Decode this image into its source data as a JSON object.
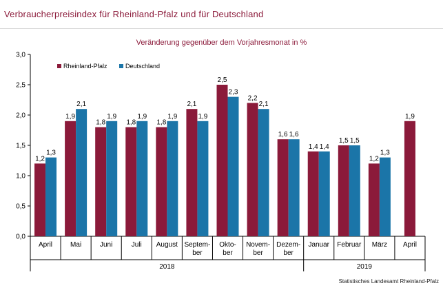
{
  "title": "Verbraucherpreisindex für Rheinland-Pfalz und für Deutschland",
  "source": "Statistisches Landesamt Rheinland-Pfalz",
  "colors": {
    "rlp": "#8b1a3a",
    "de": "#1b75a8",
    "title": "#8b1a3a"
  },
  "chart_data": {
    "type": "bar",
    "title": "Veränderung gegenüber dem Vorjahresmonat in %",
    "ylim": [
      0,
      3.0
    ],
    "yticks": [
      "0,0",
      "0,5",
      "1,0",
      "1,5",
      "2,0",
      "2,5",
      "3,0"
    ],
    "ytick_values": [
      0,
      0.5,
      1.0,
      1.5,
      2.0,
      2.5,
      3.0
    ],
    "grid": false,
    "legend_position": "top-left",
    "categories": [
      [
        "April"
      ],
      [
        "Mai"
      ],
      [
        "Juni"
      ],
      [
        "Juli"
      ],
      [
        "August"
      ],
      [
        "Septem-",
        "ber"
      ],
      [
        "Okto-",
        "ber"
      ],
      [
        "Novem-",
        "ber"
      ],
      [
        "Dezem-",
        "ber"
      ],
      [
        "Januar"
      ],
      [
        "Februar"
      ],
      [
        "März"
      ],
      [
        "April"
      ]
    ],
    "years": [
      {
        "label": "2018",
        "from": 0,
        "to": 8
      },
      {
        "label": "2019",
        "from": 9,
        "to": 12
      }
    ],
    "series": [
      {
        "name": "Rheinland-Pfalz",
        "key": "rlp",
        "values": [
          1.2,
          1.9,
          1.8,
          1.8,
          1.8,
          2.1,
          2.5,
          2.2,
          1.6,
          1.4,
          1.5,
          1.2,
          1.9
        ],
        "labels": [
          "1,2",
          "1,9",
          "1,8",
          "1,8",
          "1,8",
          "2,1",
          "2,5",
          "2,2",
          "1,6",
          "1,4",
          "1,5",
          "1,2",
          "1,9"
        ]
      },
      {
        "name": "Deutschland",
        "key": "de",
        "values": [
          1.3,
          2.1,
          1.9,
          1.9,
          1.9,
          1.9,
          2.3,
          2.1,
          1.6,
          1.4,
          1.5,
          1.3,
          null
        ],
        "labels": [
          "1,3",
          "2,1",
          "1,9",
          "1,9",
          "1,9",
          "1,9",
          "2,3",
          "2,1",
          "1,6",
          "1,4",
          "1,5",
          "1,3",
          null
        ]
      }
    ]
  }
}
